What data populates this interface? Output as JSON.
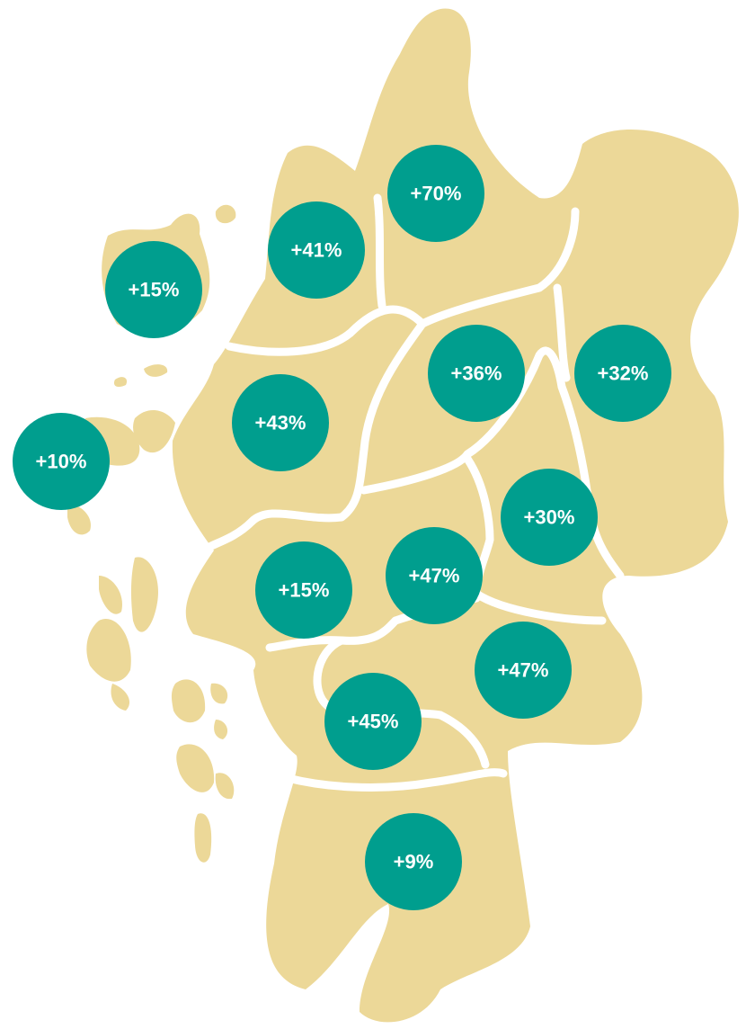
{
  "regions": [
    {
      "label": "+70%"
    },
    {
      "label": "+41%"
    },
    {
      "label": "+15%"
    },
    {
      "label": "+36%"
    },
    {
      "label": "+32%"
    },
    {
      "label": "+43%"
    },
    {
      "label": "+10%"
    },
    {
      "label": "+30%"
    },
    {
      "label": "+47%"
    },
    {
      "label": "+15%"
    },
    {
      "label": "+47%"
    },
    {
      "label": "+45%"
    },
    {
      "label": "+9%"
    }
  ]
}
